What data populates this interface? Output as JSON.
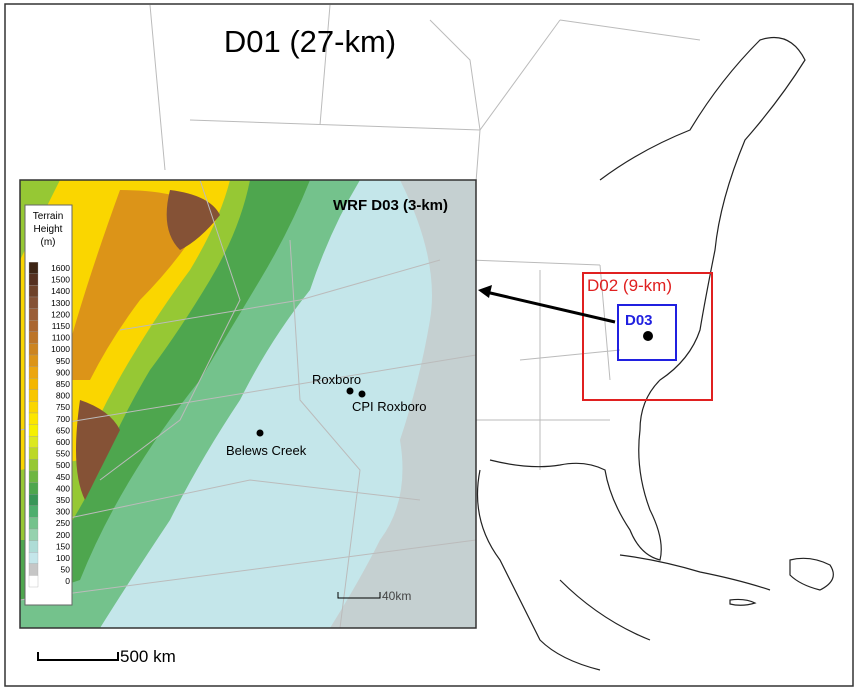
{
  "map_title": "D01 (27-km)",
  "inset": {
    "title": "WRF D03 (3-km)",
    "legend": {
      "title_lines": [
        "Terrain",
        "Height",
        "(m)"
      ],
      "levels": [
        {
          "label": "1600",
          "color": "#3d2414"
        },
        {
          "label": "1500",
          "color": "#553020"
        },
        {
          "label": "1400",
          "color": "#6e422a"
        },
        {
          "label": "1300",
          "color": "#855236"
        },
        {
          "label": "1200",
          "color": "#9a5e38"
        },
        {
          "label": "1150",
          "color": "#aa6630"
        },
        {
          "label": "1100",
          "color": "#bc7428"
        },
        {
          "label": "1000",
          "color": "#cc8420"
        },
        {
          "label": "950",
          "color": "#dc9418"
        },
        {
          "label": "900",
          "color": "#eca610"
        },
        {
          "label": "850",
          "color": "#f4b600"
        },
        {
          "label": "800",
          "color": "#f8c600"
        },
        {
          "label": "750",
          "color": "#fad600"
        },
        {
          "label": "700",
          "color": "#fce600"
        },
        {
          "label": "650",
          "color": "#f6f000"
        },
        {
          "label": "600",
          "color": "#dce820"
        },
        {
          "label": "550",
          "color": "#bcd828"
        },
        {
          "label": "500",
          "color": "#96c834"
        },
        {
          "label": "450",
          "color": "#6eb642"
        },
        {
          "label": "400",
          "color": "#4ea64e"
        },
        {
          "label": "350",
          "color": "#389658"
        },
        {
          "label": "300",
          "color": "#4eae6e"
        },
        {
          "label": "250",
          "color": "#74c28c"
        },
        {
          "label": "200",
          "color": "#96d2ae"
        },
        {
          "label": "150",
          "color": "#aedcd6"
        },
        {
          "label": "100",
          "color": "#c4e6ea"
        },
        {
          "label": "50",
          "color": "#c6c6c6"
        },
        {
          "label": "0",
          "color": "#ffffff"
        }
      ]
    },
    "places": [
      "Roxboro",
      "CPI Roxboro",
      "Belews Creek"
    ],
    "scale": "40km"
  },
  "d02_label": "D02 (9-km)",
  "d03_label": "D03",
  "scale": "500 km"
}
